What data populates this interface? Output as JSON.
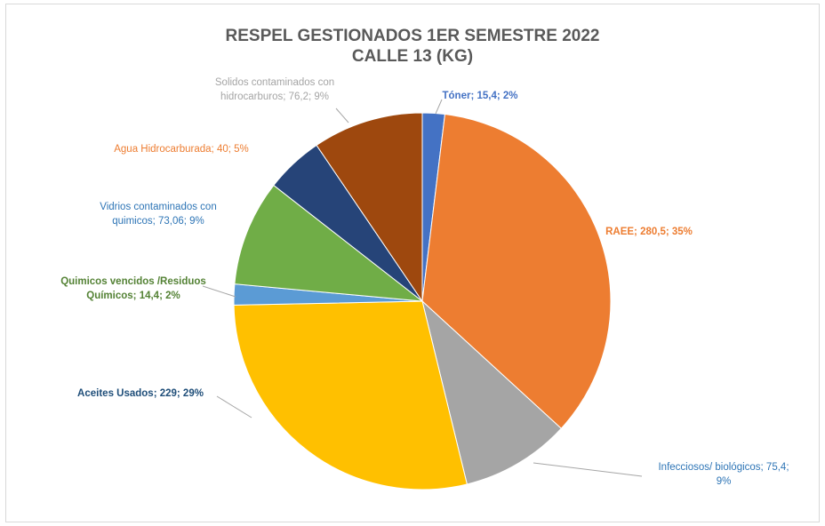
{
  "chart_data": {
    "type": "pie",
    "title_lines": [
      "RESPEL GESTIONADOS 1ER SEMESTRE 2022",
      "CALLE 13 (KG)"
    ],
    "slices": [
      {
        "name": "Tóner",
        "value": 15.4,
        "pct": "2%",
        "color": "#4472C4",
        "label_lines": [
          "Tóner; 15,4; 2%"
        ],
        "bold": true
      },
      {
        "name": "RAEE",
        "value": 280.5,
        "pct": "35%",
        "color": "#ED7D31",
        "label_lines": [
          "RAEE; 280,5; 35%"
        ],
        "bold": true
      },
      {
        "name": "Infecciosos/ biológicos",
        "value": 75.4,
        "pct": "9%",
        "color": "#A5A5A5",
        "label_lines": [
          "Infecciosos/ biológicos; 75,4;",
          "9%"
        ],
        "bold": false
      },
      {
        "name": "Aceites Usados",
        "value": 229,
        "pct": "29%",
        "color": "#FFC000",
        "label_lines": [
          "Aceites Usados; 229; 29%"
        ],
        "bold": true
      },
      {
        "name": "Quimicos vencidos /Residuos Químicos",
        "value": 14.4,
        "pct": "2%",
        "color": "#5B9BD5",
        "label_lines": [
          "Quimicos vencidos /Residuos",
          "Químicos; 14,4; 2%"
        ],
        "bold": true
      },
      {
        "name": "Vidrios contaminados con quimicos",
        "value": 73.06,
        "pct": "9%",
        "color": "#70AD47",
        "label_lines": [
          "Vidrios contaminados con",
          "quimicos; 73,06; 9%"
        ],
        "bold": false
      },
      {
        "name": "Agua Hidrocarburada",
        "value": 40,
        "pct": "5%",
        "color": "#264478",
        "label_lines": [
          "Agua Hidrocarburada; 40; 5%"
        ],
        "bold": false
      },
      {
        "name": "Solidos contaminados con hidrocarburos",
        "value": 76.2,
        "pct": "9%",
        "color": "#9E480E",
        "label_lines": [
          "Solidos contaminados con",
          "hidrocarburos; 76,2; 9%"
        ],
        "bold": false
      }
    ],
    "label_colors": {
      "Tóner": "#4472C4",
      "RAEE": "#ED7D31",
      "Infecciosos/ biológicos": "#2E75B6",
      "Aceites Usados": "#1F4E79",
      "Quimicos vencidos /Residuos Químicos": "#548235",
      "Vidrios contaminados con quimicos": "#2E75B6",
      "Agua Hidrocarburada": "#ED7D31",
      "Solidos contaminados con hidrocarburos": "#A5A5A5"
    },
    "legend": "none",
    "start_angle_deg": 0,
    "direction": "clockwise"
  }
}
